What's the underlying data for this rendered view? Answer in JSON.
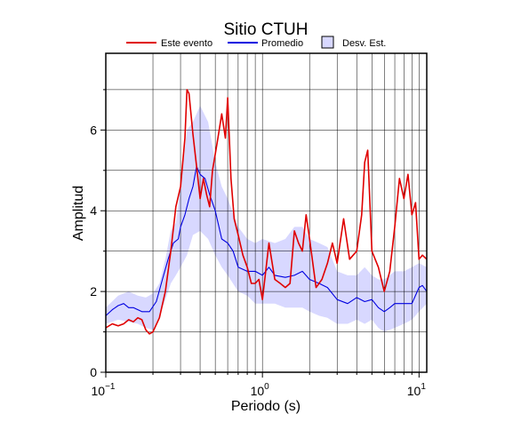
{
  "chart_data": {
    "type": "line",
    "title": "Sitio CTUH",
    "xlabel": "Periodo (s)",
    "ylabel": "Amplitud",
    "xscale": "log",
    "xlim": [
      0.1,
      11.2
    ],
    "ylim": [
      0,
      7.9
    ],
    "x_ticks": [
      {
        "value": 0.1,
        "base": "10",
        "exp": "−1"
      },
      {
        "value": 1,
        "base": "10",
        "exp": "0"
      },
      {
        "value": 10,
        "base": "10",
        "exp": "1"
      }
    ],
    "y_ticks": [
      0,
      2,
      4,
      6
    ],
    "y_grid": [
      1,
      2,
      3,
      4,
      5,
      6,
      7
    ],
    "grid": true,
    "legend_position": "top",
    "legend": [
      {
        "label": "Este evento",
        "kind": "line",
        "color": "#e00000"
      },
      {
        "label": "Promedio",
        "kind": "line",
        "color": "#0000e0"
      },
      {
        "label": "Desv. Est.",
        "kind": "box",
        "color": "#d8d8ff"
      }
    ],
    "series": [
      {
        "name": "Este evento",
        "color": "#e00000",
        "x": [
          0.1,
          0.11,
          0.12,
          0.13,
          0.14,
          0.15,
          0.16,
          0.17,
          0.18,
          0.19,
          0.2,
          0.22,
          0.24,
          0.26,
          0.28,
          0.3,
          0.32,
          0.33,
          0.34,
          0.36,
          0.38,
          0.4,
          0.42,
          0.44,
          0.46,
          0.48,
          0.5,
          0.52,
          0.55,
          0.58,
          0.6,
          0.63,
          0.66,
          0.7,
          0.75,
          0.8,
          0.85,
          0.9,
          0.95,
          1.0,
          1.1,
          1.2,
          1.3,
          1.4,
          1.5,
          1.6,
          1.7,
          1.8,
          1.9,
          2.0,
          2.2,
          2.4,
          2.6,
          2.8,
          3.0,
          3.3,
          3.6,
          4.0,
          4.3,
          4.5,
          4.7,
          5.0,
          5.5,
          6.0,
          6.5,
          7.0,
          7.5,
          8.0,
          8.5,
          9.0,
          9.5,
          10.0,
          10.5,
          11.2
        ],
        "values": [
          1.1,
          1.2,
          1.15,
          1.2,
          1.3,
          1.25,
          1.35,
          1.3,
          1.05,
          0.95,
          1.0,
          1.35,
          2.0,
          3.0,
          4.1,
          4.6,
          5.8,
          7.0,
          6.9,
          5.9,
          5.1,
          4.3,
          4.8,
          4.4,
          4.1,
          5.0,
          5.4,
          5.8,
          6.4,
          5.8,
          6.8,
          4.8,
          3.8,
          3.4,
          2.9,
          2.6,
          2.2,
          2.2,
          2.3,
          1.8,
          3.2,
          2.3,
          2.2,
          2.1,
          2.2,
          3.5,
          3.2,
          3.0,
          3.9,
          3.3,
          2.1,
          2.3,
          2.7,
          3.2,
          2.7,
          3.8,
          2.8,
          3.0,
          3.9,
          5.2,
          5.5,
          3.0,
          2.6,
          2.0,
          2.5,
          3.6,
          4.8,
          4.3,
          4.9,
          3.9,
          4.2,
          2.8,
          2.9,
          2.8
        ]
      },
      {
        "name": "Promedio",
        "color": "#0000e0",
        "x": [
          0.1,
          0.11,
          0.12,
          0.13,
          0.14,
          0.15,
          0.17,
          0.19,
          0.21,
          0.23,
          0.25,
          0.27,
          0.29,
          0.3,
          0.32,
          0.34,
          0.36,
          0.38,
          0.4,
          0.43,
          0.46,
          0.5,
          0.55,
          0.6,
          0.65,
          0.7,
          0.8,
          0.9,
          1.0,
          1.1,
          1.2,
          1.4,
          1.6,
          1.8,
          2.0,
          2.3,
          2.6,
          3.0,
          3.5,
          4.0,
          4.5,
          5.0,
          5.5,
          6.0,
          6.5,
          7.0,
          8.0,
          9.0,
          10.0,
          10.5,
          11.2
        ],
        "values": [
          1.4,
          1.55,
          1.65,
          1.7,
          1.6,
          1.6,
          1.5,
          1.5,
          1.75,
          2.3,
          2.8,
          3.2,
          3.3,
          3.6,
          3.9,
          4.3,
          4.6,
          5.1,
          4.9,
          4.8,
          4.4,
          4.0,
          3.3,
          3.2,
          3.0,
          2.6,
          2.5,
          2.5,
          2.4,
          2.6,
          2.4,
          2.35,
          2.4,
          2.5,
          2.3,
          2.2,
          2.1,
          1.8,
          1.7,
          1.85,
          1.75,
          1.8,
          1.6,
          1.5,
          1.6,
          1.7,
          1.7,
          1.7,
          2.1,
          2.15,
          2.0
        ]
      }
    ],
    "band": {
      "name": "Desv. Est.",
      "color": "#d8d8ff",
      "x": [
        0.1,
        0.12,
        0.14,
        0.16,
        0.18,
        0.2,
        0.22,
        0.24,
        0.26,
        0.28,
        0.3,
        0.33,
        0.36,
        0.4,
        0.45,
        0.5,
        0.55,
        0.6,
        0.7,
        0.8,
        0.9,
        1.0,
        1.2,
        1.4,
        1.6,
        1.8,
        2.0,
        2.3,
        2.6,
        3.0,
        3.5,
        4.0,
        4.5,
        5.0,
        5.5,
        6.0,
        7.0,
        8.0,
        9.0,
        10.0,
        11.2
      ],
      "lower": [
        1.2,
        1.3,
        1.25,
        1.2,
        1.1,
        1.05,
        1.4,
        1.8,
        2.2,
        2.4,
        2.6,
        2.9,
        3.4,
        3.5,
        3.3,
        2.9,
        2.6,
        2.4,
        2.0,
        1.9,
        1.7,
        1.7,
        1.7,
        1.6,
        1.6,
        1.6,
        1.5,
        1.4,
        1.35,
        1.2,
        1.2,
        1.3,
        1.2,
        1.3,
        1.1,
        1.0,
        1.1,
        1.2,
        1.3,
        1.5,
        1.7
      ],
      "upper": [
        1.6,
        1.9,
        2.0,
        1.9,
        1.85,
        1.95,
        2.2,
        2.8,
        3.5,
        3.7,
        4.6,
        6.0,
        6.2,
        6.6,
        6.2,
        5.2,
        4.6,
        4.3,
        3.6,
        3.3,
        3.2,
        3.3,
        3.2,
        3.3,
        3.6,
        3.6,
        3.3,
        3.2,
        3.1,
        2.5,
        2.4,
        2.4,
        2.6,
        2.4,
        2.3,
        2.3,
        2.5,
        2.5,
        2.6,
        2.7,
        2.6
      ]
    }
  }
}
